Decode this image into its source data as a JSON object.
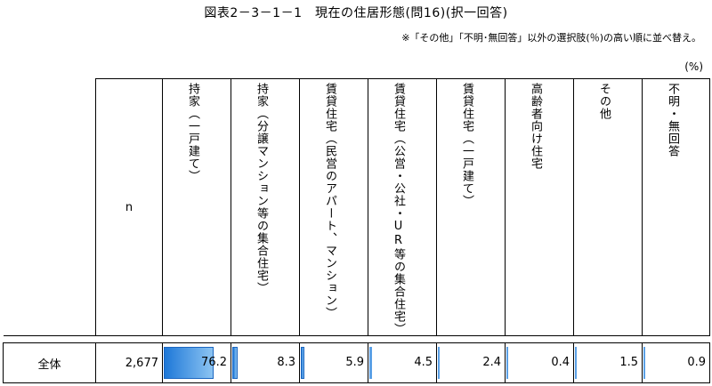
{
  "title": "図表2－3－1－1　現在の住居形態(問16)(択一回答)",
  "note": "※「その他」「不明･無回答」以外の選択肢(％)の高い順に並べ替え。",
  "unit": "(%)",
  "n_header": "n",
  "columns": [
    {
      "label": "持家（一戸建て）"
    },
    {
      "label": "持家（分譲マンション等の集合住宅）"
    },
    {
      "label": "賃貸住宅（民営のアパート、マンション）"
    },
    {
      "label": "賃貸住宅（公営・公社・UR等の集合住宅）"
    },
    {
      "label": "賃貸住宅（一戸建て）"
    },
    {
      "label": "高齢者向け住宅"
    },
    {
      "label": "その他"
    },
    {
      "label": "不明・無回答"
    }
  ],
  "rows": [
    {
      "label": "全体",
      "n": "2,677",
      "values": [
        "76.2",
        "8.3",
        "5.9",
        "4.5",
        "2.4",
        "0.4",
        "1.5",
        "0.9"
      ]
    }
  ],
  "chart_data": {
    "type": "table",
    "categories": [
      "持家（一戸建て）",
      "持家（分譲マンション等の集合住宅）",
      "賃貸住宅（民営のアパート、マンション）",
      "賃貸住宅（公営・公社・UR等の集合住宅）",
      "賃貸住宅（一戸建て）",
      "高齢者向け住宅",
      "その他",
      "不明・無回答"
    ],
    "series": [
      {
        "name": "全体",
        "values": [
          76.2,
          8.3,
          5.9,
          4.5,
          2.4,
          0.4,
          1.5,
          0.9
        ]
      }
    ],
    "ylim": [
      0,
      100
    ],
    "bar_color": "#1e78d8"
  }
}
